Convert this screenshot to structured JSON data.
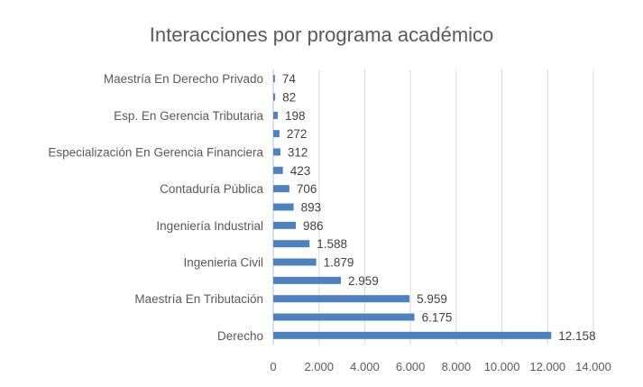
{
  "chart_data": {
    "type": "bar",
    "orientation": "horizontal",
    "title": "Interacciones por programa académico",
    "xlabel": "",
    "ylabel": "",
    "xlim": [
      0,
      14000
    ],
    "x_ticks": [
      0,
      2000,
      4000,
      6000,
      8000,
      10000,
      12000,
      14000
    ],
    "x_tick_labels": [
      "0",
      "2.000",
      "4.000",
      "6.000",
      "8.000",
      "10.000",
      "12.000",
      "14.000"
    ],
    "grid": true,
    "legend": "none",
    "bar_color": "#4F81BD",
    "categories": [
      "Maestría En Derecho Privado",
      "",
      "Esp. En Gerencia Tributaria",
      "",
      "Especialización En Gerencia Financiera",
      "",
      "Contaduría Pública",
      "",
      "Ingeniería Industrial",
      "",
      "Ingenieria Civil",
      "",
      "Maestría En Tributación",
      "",
      "Derecho"
    ],
    "values": [
      74,
      82,
      198,
      272,
      312,
      423,
      706,
      893,
      986,
      1588,
      1879,
      2959,
      5959,
      6175,
      12158
    ],
    "value_labels": [
      "74",
      "82",
      "198",
      "272",
      "312",
      "423",
      "706",
      "893",
      "986",
      "1.588",
      "1.879",
      "2.959",
      "5.959",
      "6.175",
      "12.158"
    ]
  }
}
